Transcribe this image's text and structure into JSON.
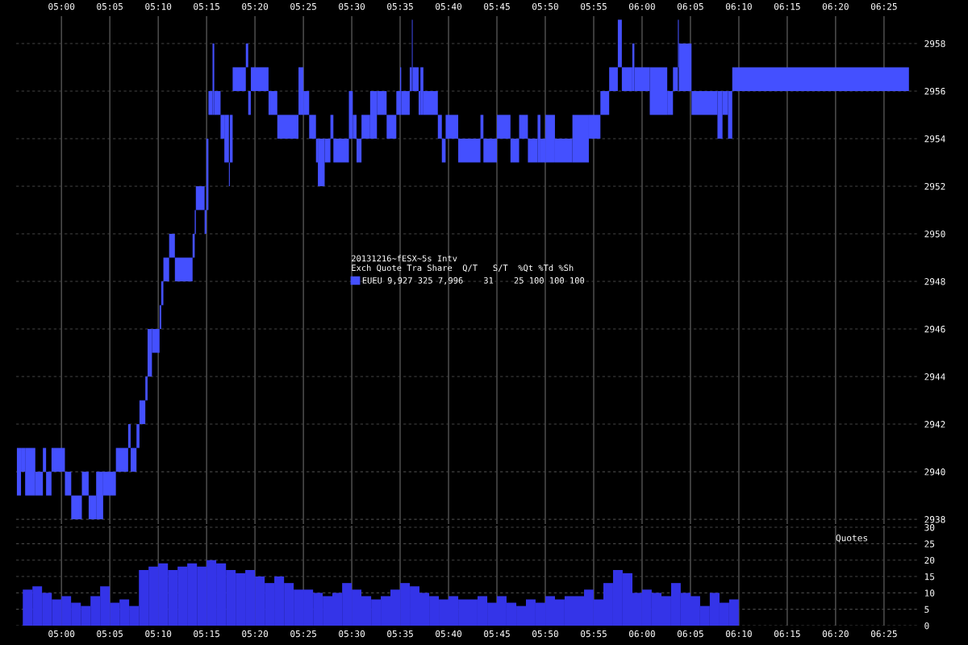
{
  "chart_data": [
    {
      "type": "bar",
      "legend": "center",
      "legend_title": "20131216~fESX~5s Intv\nExch Quote Tra Share  Q/T   S/T  %Qt %Td %Sh",
      "grid": true,
      "x": [
        4.9268,
        4.9339,
        4.9462,
        4.9615,
        4.9708,
        4.9782,
        4.9944,
        5.0114,
        5.026,
        5.041,
        5.0533,
        5.0658,
        5.0828,
        5.1043,
        5.117,
        5.1242,
        5.1318,
        5.1394,
        5.1464,
        5.1521,
        5.1624,
        5.1704,
        5.1737,
        5.1805,
        5.1904,
        5.2106,
        5.2277,
        5.2305,
        5.239,
        5.2481,
        5.2514,
        5.2567,
        5.2617,
        5.2686,
        5.2773,
        5.2845,
        5.2892,
        5.2924,
        5.3062,
        5.3196,
        5.3239,
        5.3414,
        5.3642,
        5.39,
        5.4125,
        5.4217,
        5.4325,
        5.44,
        5.4475,
        5.4583,
        5.4658,
        5.4817,
        5.4984,
        5.505,
        5.5125,
        5.5242,
        5.5375,
        5.5517,
        5.5684,
        5.58,
        5.5842,
        5.5925,
        5.6017,
        5.6042,
        5.61,
        5.6167,
        5.6208,
        5.6358,
        5.6517,
        5.6584,
        5.6725,
        5.7025,
        5.7242,
        5.7384,
        5.7617,
        5.7808,
        5.7958,
        5.8117,
        5.8225,
        5.8292,
        5.8417,
        5.865,
        5.8942,
        5.9183,
        5.9358,
        5.9508,
        5.9617,
        5.9742,
        5.985,
        6.0,
        6.0283,
        6.0483,
        6.0575,
        6.0625,
        6.0742,
        6.1075,
        6.1342,
        6.1433,
        6.1517,
        6.3075
      ],
      "series": [
        {
          "name": "EUEU 9,927 325 7,996    31    25 100 100 100",
          "color": "#4450ff",
          "base": [
            2939,
            2940,
            2939,
            2939,
            2940,
            2939,
            2940,
            2939,
            2938,
            2939,
            2938,
            2938,
            2939,
            2940,
            2941,
            2940,
            2941,
            2942,
            2943,
            2944,
            2945,
            2946,
            2947,
            2948,
            2949,
            2948,
            2949,
            2950,
            2951,
            2950,
            2951,
            2955,
            2955,
            2955,
            2954,
            2953,
            2952,
            2953,
            2956,
            2957,
            2955,
            2956,
            2955,
            2954,
            2955,
            2955,
            2954,
            2953,
            2952,
            2953,
            2954,
            2953,
            2954,
            2954,
            2953,
            2954,
            2954,
            2955,
            2954,
            2955,
            2955,
            2955,
            2956,
            2956,
            2956,
            2955,
            2955,
            2955,
            2954,
            2953,
            2954,
            2953,
            2954,
            2953,
            2954,
            2953,
            2954,
            2953,
            2953,
            2953,
            2953,
            2953,
            2953,
            2954,
            2955,
            2956,
            2957,
            2956,
            2956,
            2956,
            2955,
            2955,
            2956,
            2957,
            2956,
            2955,
            2954,
            2955,
            2954,
            2956
          ],
          "values": [
            2,
            1,
            2,
            1,
            1,
            1,
            1,
            1,
            1,
            1,
            1,
            2,
            1,
            1,
            1,
            1,
            1,
            1,
            1,
            2,
            1,
            1,
            1,
            1,
            1,
            1,
            1,
            1,
            1,
            1,
            3,
            1,
            3,
            1,
            1,
            2,
            1,
            2,
            1,
            1,
            1,
            1,
            1,
            1,
            2,
            1,
            1,
            1,
            2,
            1,
            1,
            1,
            2,
            1,
            1,
            1,
            2,
            1,
            1,
            1,
            2,
            1,
            1,
            3,
            1,
            1,
            2,
            1,
            1,
            1,
            1,
            1,
            1,
            1,
            1,
            1,
            1,
            1,
            2,
            1,
            2,
            1,
            2,
            1,
            1,
            1,
            2,
            1,
            2,
            1,
            2,
            1,
            1,
            2,
            2,
            1,
            2,
            1,
            2,
            1
          ]
        }
      ],
      "xlim": [
        4.922,
        6.478
      ],
      "ylim": [
        2937.8,
        2959.15
      ],
      "xticks": [
        {
          "value": 5,
          "label": "05:00"
        },
        {
          "value": 5.0833,
          "label": "05:05"
        },
        {
          "value": 5.1667,
          "label": "05:10"
        },
        {
          "value": 5.25,
          "label": "05:15"
        },
        {
          "value": 5.3333,
          "label": "05:20"
        },
        {
          "value": 5.4167,
          "label": "05:25"
        },
        {
          "value": 5.5,
          "label": "05:30"
        },
        {
          "value": 5.5833,
          "label": "05:35"
        },
        {
          "value": 5.6667,
          "label": "05:40"
        },
        {
          "value": 5.75,
          "label": "05:45"
        },
        {
          "value": 5.8333,
          "label": "05:50"
        },
        {
          "value": 5.9167,
          "label": "05:55"
        },
        {
          "value": 6,
          "label": "06:00"
        },
        {
          "value": 6.0833,
          "label": "06:05"
        },
        {
          "value": 6.1667,
          "label": "06:10"
        },
        {
          "value": 6.25,
          "label": "06:15"
        },
        {
          "value": 6.3333,
          "label": "06:20"
        },
        {
          "value": 6.4167,
          "label": "06:25"
        }
      ],
      "yticks": [
        2938,
        2940,
        2942,
        2944,
        2946,
        2948,
        2950,
        2952,
        2954,
        2956,
        2958
      ]
    },
    {
      "type": "bar",
      "ylabel": "Quotes",
      "grid": true,
      "x": [
        4.9417,
        4.9583,
        4.975,
        4.9917,
        5.0083,
        5.025,
        5.0417,
        5.0583,
        5.075,
        5.0917,
        5.1083,
        5.125,
        5.1417,
        5.1583,
        5.175,
        5.1917,
        5.2083,
        5.225,
        5.2417,
        5.2583,
        5.275,
        5.2917,
        5.3083,
        5.325,
        5.3417,
        5.3583,
        5.375,
        5.3917,
        5.4083,
        5.425,
        5.4417,
        5.4583,
        5.475,
        5.4917,
        5.5083,
        5.525,
        5.5417,
        5.5583,
        5.575,
        5.5917,
        5.6083,
        5.625,
        5.6417,
        5.6583,
        5.675,
        5.6917,
        5.7083,
        5.725,
        5.7417,
        5.7583,
        5.775,
        5.7917,
        5.8083,
        5.825,
        5.8417,
        5.8583,
        5.875,
        5.8917,
        5.9083,
        5.925,
        5.9417,
        5.9583,
        5.975,
        5.9917,
        6.0083,
        6.025,
        6.0417,
        6.0583,
        6.075,
        6.0917,
        6.1083,
        6.125,
        6.1417,
        6.1583
      ],
      "series": [
        {
          "color": "#3434e8",
          "values": [
            11,
            12,
            10,
            8,
            9,
            7,
            6,
            9,
            12,
            7,
            8,
            6,
            17,
            18,
            19,
            17,
            18,
            19,
            18,
            20,
            19,
            17,
            16,
            17,
            15,
            13,
            15,
            13,
            11,
            11,
            10,
            9,
            10,
            13,
            11,
            9,
            8,
            9,
            11,
            13,
            12,
            10,
            9,
            8,
            9,
            8,
            8,
            9,
            7,
            9,
            7,
            6,
            8,
            7,
            9,
            8,
            9,
            9,
            11,
            8,
            13,
            17,
            16,
            10,
            11,
            10,
            9,
            13,
            10,
            9,
            6,
            10,
            7,
            8
          ]
        }
      ],
      "xlim": [
        4.922,
        6.478
      ],
      "ylim": [
        0,
        30.5
      ],
      "xticks": [
        {
          "value": 5,
          "label": "05:00"
        },
        {
          "value": 5.0833,
          "label": "05:05"
        },
        {
          "value": 5.1667,
          "label": "05:10"
        },
        {
          "value": 5.25,
          "label": "05:15"
        },
        {
          "value": 5.3333,
          "label": "05:20"
        },
        {
          "value": 5.4167,
          "label": "05:25"
        },
        {
          "value": 5.5,
          "label": "05:30"
        },
        {
          "value": 5.5833,
          "label": "05:35"
        },
        {
          "value": 5.6667,
          "label": "05:40"
        },
        {
          "value": 5.75,
          "label": "05:45"
        },
        {
          "value": 5.8333,
          "label": "05:50"
        },
        {
          "value": 5.9167,
          "label": "05:55"
        },
        {
          "value": 6,
          "label": "06:00"
        },
        {
          "value": 6.0833,
          "label": "06:05"
        },
        {
          "value": 6.1667,
          "label": "06:10"
        },
        {
          "value": 6.25,
          "label": "06:15"
        },
        {
          "value": 6.3333,
          "label": "06:20"
        },
        {
          "value": 6.4167,
          "label": "06:25"
        }
      ],
      "yticks": [
        0,
        5,
        10,
        15,
        20,
        25,
        30
      ]
    }
  ]
}
